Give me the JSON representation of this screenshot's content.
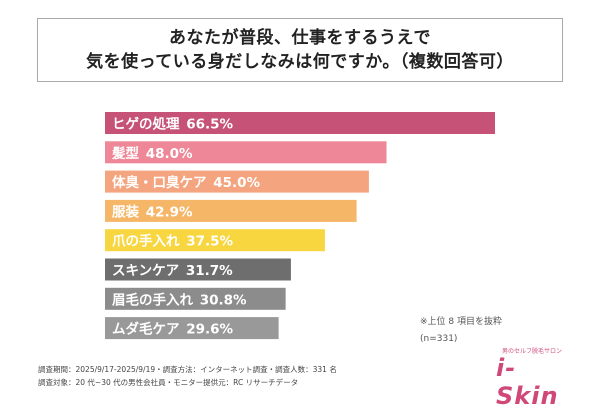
{
  "chart_data": {
    "type": "bar",
    "orientation": "horizontal",
    "title_lines": [
      "あなたが普段、仕事をするうえで",
      "気を使っている身だしなみは何ですか。（複数回答可）"
    ],
    "categories": [
      "ヒゲの処理",
      "髪型",
      "体臭・口臭ケア",
      "服装",
      "爪の手入れ",
      "スキンケア",
      "眉毛の手入れ",
      "ムダ毛ケア"
    ],
    "values": [
      66.5,
      48.0,
      45.0,
      42.9,
      37.5,
      31.7,
      30.8,
      29.6
    ],
    "value_labels": [
      "66.5%",
      "48.0%",
      "45.0%",
      "42.9%",
      "37.5%",
      "31.7%",
      "30.8%",
      "29.6%"
    ],
    "colors": [
      "#c65278",
      "#ee8797",
      "#f4a57f",
      "#f6b668",
      "#f7d640",
      "#6e6e6e",
      "#8c8c8c",
      "#999999"
    ],
    "xlim": [
      0,
      66.5
    ],
    "grid": false,
    "xlabel": "",
    "ylabel": ""
  },
  "notes": {
    "top_items": "※上位 8 項目を抜粋",
    "sample": "(n=331)"
  },
  "footer": {
    "line1": "調査期間：2025/9/17-2025/9/19・調査方法：インターネット調査・調査人数：331 名",
    "line2": "調査対象：20 代~30 代の男性会社員・モニター提供元：RC リサーチデータ"
  },
  "logo": {
    "tagline": "男のセルフ脱毛サロン",
    "brand": "i-Skin"
  }
}
